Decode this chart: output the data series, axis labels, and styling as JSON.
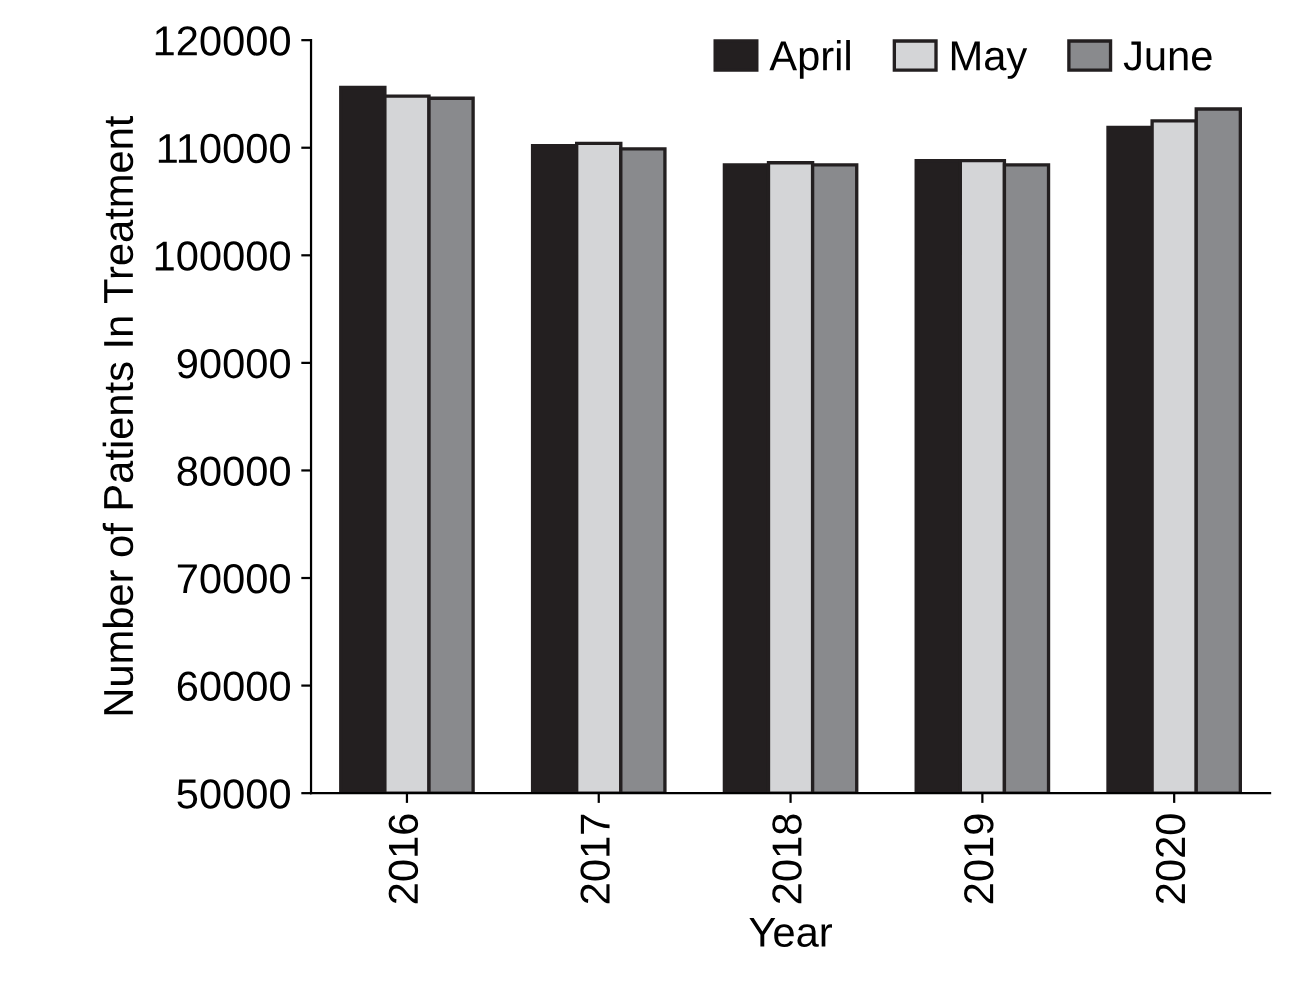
{
  "chart_data": {
    "type": "bar",
    "xlabel": "Year",
    "ylabel": "Number of Patients In Treatment",
    "categories": [
      "2016",
      "2017",
      "2018",
      "2019",
      "2020"
    ],
    "series": [
      {
        "name": "April",
        "color": "#231f20",
        "values": [
          115600,
          110200,
          108400,
          108800,
          111900
        ]
      },
      {
        "name": "May",
        "color": "#d4d5d7",
        "values": [
          114800,
          110400,
          108600,
          108800,
          112500
        ]
      },
      {
        "name": "June",
        "color": "#898a8d",
        "values": [
          114600,
          109900,
          108400,
          108400,
          113600
        ]
      }
    ],
    "ylim": [
      50000,
      120000
    ],
    "yticks": [
      50000,
      60000,
      70000,
      80000,
      90000,
      100000,
      110000,
      120000
    ],
    "grid": false,
    "legend": "top right"
  }
}
